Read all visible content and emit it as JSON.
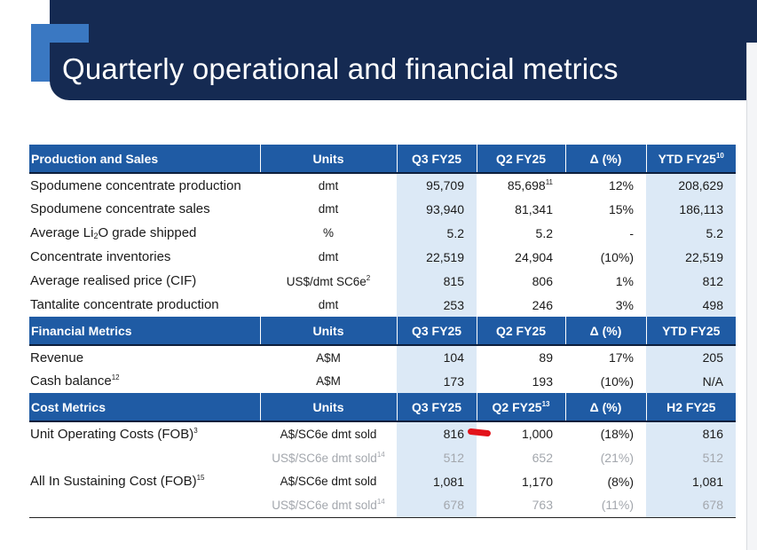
{
  "title": "Quarterly operational and financial metrics",
  "colors": {
    "banner": "#152a52",
    "accent": "#3a78c2",
    "header": "#1f5ba4",
    "shade": "#dce9f6",
    "annotation": "#e3121a"
  },
  "production": {
    "header": {
      "label": "Production and Sales",
      "units": "Units",
      "q3": "Q3 FY25",
      "q2": "Q2 FY25",
      "delta": "Δ (%)",
      "ytd": "YTD FY25",
      "ytd_sup": "10"
    },
    "rows": [
      {
        "label": "Spodumene concentrate production",
        "units": "dmt",
        "q3": "95,709",
        "q2": "85,698",
        "q2_sup": "11",
        "delta": "12%",
        "ytd": "208,629"
      },
      {
        "label": "Spodumene concentrate sales",
        "units": "dmt",
        "q3": "93,940",
        "q2": "81,341",
        "delta": "15%",
        "ytd": "186,113"
      },
      {
        "label_pre": "Average Li",
        "label_sub": "2",
        "label_post": "O grade shipped",
        "units": "%",
        "q3": "5.2",
        "q2": "5.2",
        "delta": "-",
        "ytd": "5.2"
      },
      {
        "label": "Concentrate inventories",
        "units": "dmt",
        "q3": "22,519",
        "q2": "24,904",
        "delta": "(10%)",
        "ytd": "22,519"
      },
      {
        "label": "Average realised price (CIF)",
        "units": "US$/dmt SC6e",
        "units_sup": "2",
        "q3": "815",
        "q2": "806",
        "delta": "1%",
        "ytd": "812"
      },
      {
        "label": "Tantalite concentrate production",
        "units": "dmt",
        "q3": "253",
        "q2": "246",
        "delta": "3%",
        "ytd": "498"
      }
    ]
  },
  "financial": {
    "header": {
      "label": "Financial Metrics",
      "units": "Units",
      "q3": "Q3 FY25",
      "q2": "Q2 FY25",
      "delta": "Δ (%)",
      "ytd": "YTD FY25"
    },
    "rows": [
      {
        "label": "Revenue",
        "units": "A$M",
        "q3": "104",
        "q2": "89",
        "delta": "17%",
        "ytd": "205"
      },
      {
        "label": "Cash balance",
        "label_sup": "12",
        "units": "A$M",
        "q3": "173",
        "q2": "193",
        "delta": "(10%)",
        "ytd": "N/A"
      }
    ]
  },
  "cost": {
    "header": {
      "label": "Cost Metrics",
      "units": "Units",
      "q3": "Q3 FY25",
      "q2": "Q2 FY25",
      "q2_sup": "13",
      "delta": "Δ (%)",
      "ytd": "H2 FY25"
    },
    "rows": [
      {
        "label": "Unit Operating Costs (FOB)",
        "label_sup": "3",
        "units": "A$/SC6e dmt sold",
        "q3": "816",
        "q2": "1,000",
        "delta": "(18%)",
        "ytd": "816"
      },
      {
        "label": "",
        "units": "US$/SC6e dmt sold",
        "units_sup": "14",
        "q3": "512",
        "q2": "652",
        "delta": "(21%)",
        "ytd": "512"
      },
      {
        "label": "All In Sustaining Cost (FOB)",
        "label_sup": "15",
        "units": "A$/SC6e dmt sold",
        "q3": "1,081",
        "q2": "1,170",
        "delta": "(8%)",
        "ytd": "1,081"
      },
      {
        "label": "",
        "units": "US$/SC6e dmt sold",
        "units_sup": "14",
        "q3": "678",
        "q2": "763",
        "delta": "(11%)",
        "ytd": "678"
      }
    ]
  }
}
